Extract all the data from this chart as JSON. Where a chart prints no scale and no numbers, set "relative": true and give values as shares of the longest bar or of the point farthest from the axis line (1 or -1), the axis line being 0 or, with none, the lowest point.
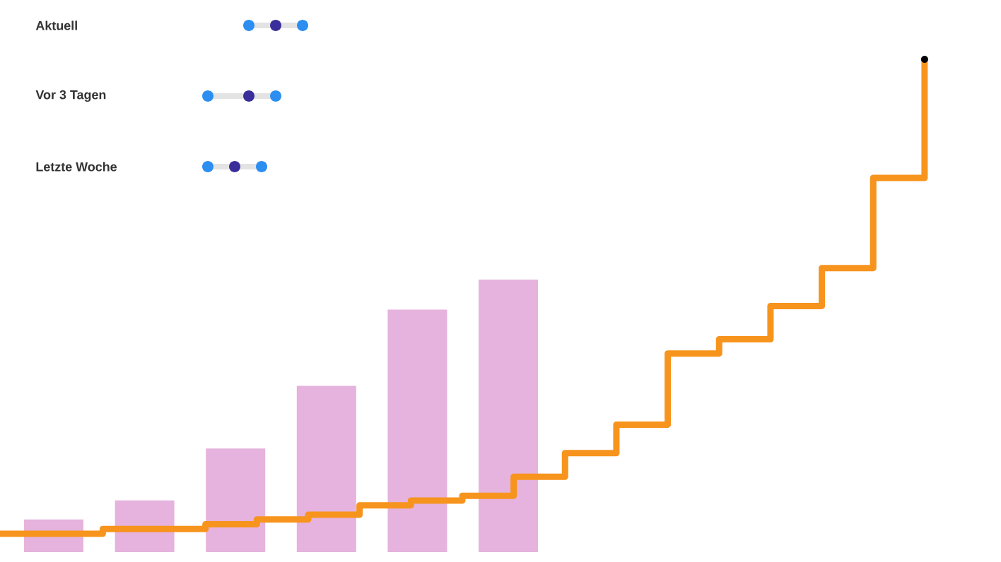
{
  "chart_data": [
    {
      "type": "bar",
      "relative": true,
      "categories": [
        null,
        null,
        null,
        null,
        null,
        null
      ],
      "color": "#e5b3dd",
      "values": [
        0.12,
        0.19,
        0.38,
        0.61,
        0.89,
        1
      ]
    },
    {
      "type": "step",
      "relative": true,
      "categories": [
        null,
        null,
        null,
        null,
        null,
        null,
        null,
        null,
        null,
        null,
        null,
        null,
        null,
        null,
        null,
        null,
        null,
        null,
        null
      ],
      "color": "#f7941d",
      "values": [
        0,
        0,
        0.01,
        0.01,
        0.02,
        0.03,
        0.04,
        0.06,
        0.07,
        0.08,
        0.12,
        0.17,
        0.23,
        0.38,
        0.41,
        0.48,
        0.56,
        0.75,
        1
      ],
      "annotations": [
        "Aktuell",
        "Vor 3 Tagen",
        "Letzte Woche"
      ]
    }
  ]
}
